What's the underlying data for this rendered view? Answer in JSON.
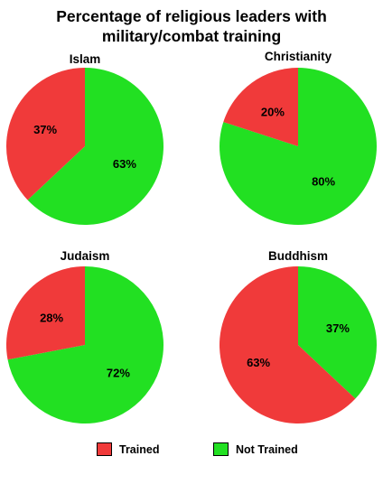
{
  "chart_data": {
    "type": "pie",
    "title_line1": "Percentage of religious leaders with",
    "title_line2": "military/combat training",
    "legend": [
      {
        "label": "Trained",
        "color": "#f03a3a"
      },
      {
        "label": "Not Trained",
        "color": "#22e022"
      }
    ],
    "pies": [
      {
        "name": "Islam",
        "slices": [
          {
            "label": "Trained",
            "value": 37,
            "text": "37%"
          },
          {
            "label": "Not Trained",
            "value": 63,
            "text": "63%"
          }
        ]
      },
      {
        "name": "Christianity",
        "slices": [
          {
            "label": "Trained",
            "value": 20,
            "text": "20%"
          },
          {
            "label": "Not Trained",
            "value": 80,
            "text": "80%"
          }
        ]
      },
      {
        "name": "Judaism",
        "slices": [
          {
            "label": "Trained",
            "value": 28,
            "text": "28%"
          },
          {
            "label": "Not Trained",
            "value": 72,
            "text": "72%"
          }
        ]
      },
      {
        "name": "Buddhism",
        "slices": [
          {
            "label": "Trained",
            "value": 63,
            "text": "63%"
          },
          {
            "label": "Not Trained",
            "value": 37,
            "text": "37%"
          }
        ]
      }
    ]
  }
}
